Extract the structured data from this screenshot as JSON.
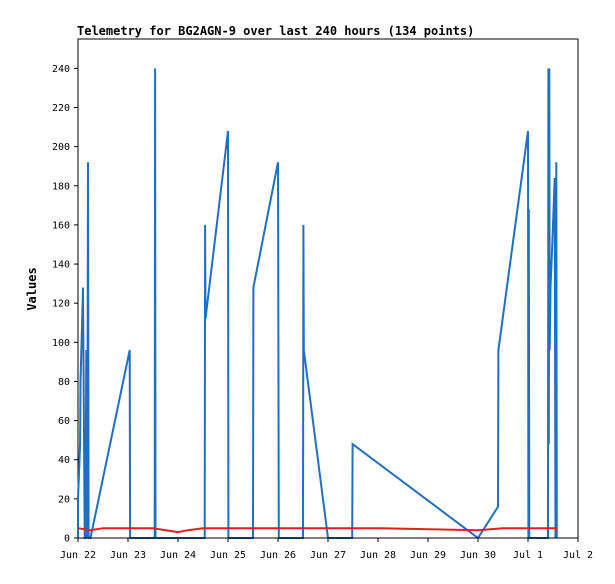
{
  "chart_data": {
    "type": "line",
    "title": "Telemetry for BG2AGN-9 over last 240 hours (134 points)",
    "xlabel": "",
    "ylabel": "Values",
    "xlim": [
      "2025-06-22 00:00",
      "2025-07-02 00:00"
    ],
    "ylim": [
      0,
      255
    ],
    "grid": false,
    "legend": "none",
    "xticks": [
      "Jun 22",
      "Jun 23",
      "Jun 24",
      "Jun 25",
      "Jun 26",
      "Jun 27",
      "Jun 28",
      "Jun 29",
      "Jun 30",
      "Jul 1",
      "Jul 2"
    ],
    "yticks": [
      0,
      20,
      40,
      60,
      80,
      100,
      120,
      140,
      160,
      180,
      200,
      220,
      240
    ],
    "series": [
      {
        "color": "#1f6fc4",
        "points": [
          [
            "2025-06-22 00:00",
            0
          ],
          [
            "2025-06-22 00:00",
            20
          ],
          [
            "2025-06-22 01:00",
            48
          ],
          [
            "2025-06-22 01:12",
            80
          ],
          [
            "2025-06-22 02:00",
            112
          ],
          [
            "2025-06-22 02:24",
            128
          ],
          [
            "2025-06-22 03:12",
            0
          ],
          [
            "2025-06-22 03:36",
            0
          ],
          [
            "2025-06-22 04:00",
            96
          ],
          [
            "2025-06-22 04:24",
            0
          ],
          [
            "2025-06-22 04:48",
            192
          ],
          [
            "2025-06-22 05:06",
            0
          ],
          [
            "2025-06-22 06:00",
            0
          ],
          [
            "2025-06-23 00:48",
            96
          ],
          [
            "2025-06-23 01:00",
            0
          ],
          [
            "2025-06-23 12:48",
            0
          ],
          [
            "2025-06-23 13:00",
            240
          ],
          [
            "2025-06-23 13:12",
            0
          ],
          [
            "2025-06-24 12:48",
            0
          ],
          [
            "2025-06-24 13:00",
            160
          ],
          [
            "2025-06-24 13:12",
            112
          ],
          [
            "2025-06-25 00:00",
            208
          ],
          [
            "2025-06-25 00:12",
            0
          ],
          [
            "2025-06-25 12:00",
            0
          ],
          [
            "2025-06-25 12:12",
            128
          ],
          [
            "2025-06-26 00:00",
            192
          ],
          [
            "2025-06-26 00:12",
            96
          ],
          [
            "2025-06-26 00:24",
            0
          ],
          [
            "2025-06-26 12:00",
            0
          ],
          [
            "2025-06-26 12:12",
            160
          ],
          [
            "2025-06-26 12:24",
            96
          ],
          [
            "2025-06-27 00:00",
            0
          ],
          [
            "2025-06-27 11:36",
            0
          ],
          [
            "2025-06-27 11:48",
            48
          ],
          [
            "2025-06-30 00:00",
            0
          ],
          [
            "2025-06-30 09:36",
            16
          ],
          [
            "2025-06-30 09:48",
            96
          ],
          [
            "2025-07-01 00:00",
            208
          ],
          [
            "2025-07-01 00:12",
            0
          ],
          [
            "2025-07-01 00:24",
            168
          ],
          [
            "2025-07-01 00:36",
            0
          ],
          [
            "2025-07-01 09:36",
            0
          ],
          [
            "2025-07-01 09:48",
            240
          ],
          [
            "2025-07-01 10:00",
            48
          ],
          [
            "2025-07-01 10:12",
            240
          ],
          [
            "2025-07-01 10:24",
            96
          ],
          [
            "2025-07-01 10:48",
            128
          ],
          [
            "2025-07-01 11:24",
            144
          ],
          [
            "2025-07-01 12:00",
            160
          ],
          [
            "2025-07-01 12:48",
            184
          ],
          [
            "2025-07-01 13:12",
            0
          ],
          [
            "2025-07-01 13:36",
            192
          ],
          [
            "2025-07-01 13:48",
            0
          ]
        ]
      },
      {
        "color": "#e02020",
        "points": [
          [
            "2025-06-22 00:00",
            5
          ],
          [
            "2025-06-22 06:00",
            4
          ],
          [
            "2025-06-22 12:00",
            5
          ],
          [
            "2025-06-23 12:00",
            5
          ],
          [
            "2025-06-24 00:00",
            3
          ],
          [
            "2025-06-24 04:48",
            4
          ],
          [
            "2025-06-24 12:00",
            5
          ],
          [
            "2025-06-28 00:00",
            5
          ],
          [
            "2025-06-30 00:00",
            4
          ],
          [
            "2025-06-30 12:00",
            5
          ],
          [
            "2025-07-01 14:00",
            5
          ]
        ]
      },
      {
        "color": "#000000",
        "points": [
          [
            "2025-06-22 00:00",
            0
          ],
          [
            "2025-07-01 14:00",
            0
          ]
        ]
      }
    ]
  }
}
